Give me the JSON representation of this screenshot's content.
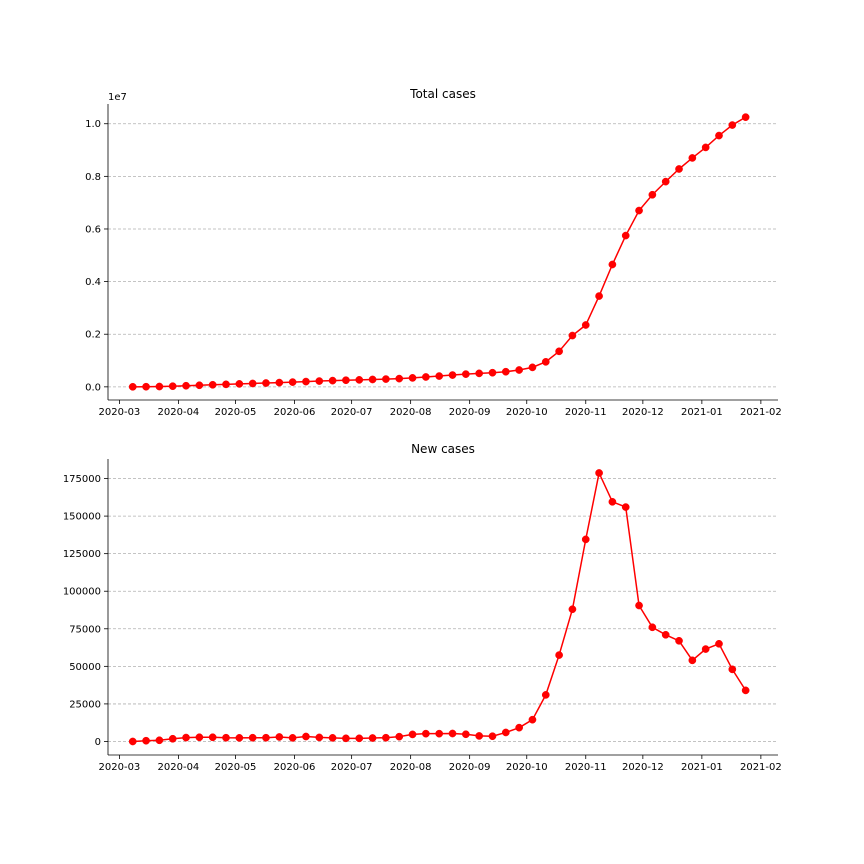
{
  "chart_data": [
    {
      "type": "line",
      "title": "Total cases",
      "xlabel": "",
      "ylabel": "",
      "y_scale_label": "1e7",
      "x_ticks": [
        "2020-03",
        "2020-04",
        "2020-05",
        "2020-06",
        "2020-07",
        "2020-08",
        "2020-09",
        "2020-10",
        "2020-11",
        "2020-12",
        "2021-01",
        "2021-02"
      ],
      "y_ticks": [
        0,
        2000000,
        4000000,
        6000000,
        8000000,
        10000000
      ],
      "y_tick_labels": [
        "0.0",
        "0.2",
        "0.4",
        "0.6",
        "0.8",
        "1.0"
      ],
      "xlim": [
        "2020-02-24",
        "2021-02-10"
      ],
      "ylim": [
        -500000,
        10750000
      ],
      "grid": "y",
      "series": [
        {
          "color": "#ff0000",
          "marker": "circle",
          "x": [
            "2020-03-08",
            "2020-03-15",
            "2020-03-22",
            "2020-03-29",
            "2020-04-05",
            "2020-04-12",
            "2020-04-19",
            "2020-04-26",
            "2020-05-03",
            "2020-05-10",
            "2020-05-17",
            "2020-05-24",
            "2020-05-31",
            "2020-06-07",
            "2020-06-14",
            "2020-06-21",
            "2020-06-28",
            "2020-07-05",
            "2020-07-12",
            "2020-07-19",
            "2020-07-26",
            "2020-08-02",
            "2020-08-09",
            "2020-08-16",
            "2020-08-23",
            "2020-08-30",
            "2020-09-06",
            "2020-09-13",
            "2020-09-20",
            "2020-09-27",
            "2020-10-04",
            "2020-10-11",
            "2020-10-18",
            "2020-10-25",
            "2020-11-01",
            "2020-11-08",
            "2020-11-15",
            "2020-11-22",
            "2020-11-29",
            "2020-12-06",
            "2020-12-13",
            "2020-12-20",
            "2020-12-27",
            "2021-01-03",
            "2021-01-10",
            "2021-01-17",
            "2021-01-24"
          ],
          "y": [
            1000,
            5000,
            12000,
            25000,
            42000,
            60000,
            78000,
            95000,
            112000,
            128000,
            145000,
            162000,
            180000,
            200000,
            220000,
            237000,
            252000,
            265000,
            280000,
            295000,
            313000,
            340000,
            375000,
            410000,
            448000,
            483000,
            512000,
            537000,
            575000,
            640000,
            740000,
            950000,
            1350000,
            1950000,
            2350000,
            3450000,
            4650000,
            5750000,
            6700000,
            7300000,
            7800000,
            8280000,
            8700000,
            9100000,
            9550000,
            9950000,
            10250000
          ]
        }
      ]
    },
    {
      "type": "line",
      "title": "New cases",
      "xlabel": "",
      "ylabel": "",
      "x_ticks": [
        "2020-03",
        "2020-04",
        "2020-05",
        "2020-06",
        "2020-07",
        "2020-08",
        "2020-09",
        "2020-10",
        "2020-11",
        "2020-12",
        "2021-01",
        "2021-02"
      ],
      "y_ticks": [
        0,
        25000,
        50000,
        75000,
        100000,
        125000,
        150000,
        175000
      ],
      "y_tick_labels": [
        "0",
        "25000",
        "50000",
        "75000",
        "100000",
        "125000",
        "150000",
        "175000"
      ],
      "xlim": [
        "2020-02-24",
        "2021-02-10"
      ],
      "ylim": [
        -9000,
        188000
      ],
      "grid": "y",
      "series": [
        {
          "color": "#ff0000",
          "marker": "circle",
          "x": [
            "2020-03-08",
            "2020-03-15",
            "2020-03-22",
            "2020-03-29",
            "2020-04-05",
            "2020-04-12",
            "2020-04-19",
            "2020-04-26",
            "2020-05-03",
            "2020-05-10",
            "2020-05-17",
            "2020-05-24",
            "2020-05-31",
            "2020-06-07",
            "2020-06-14",
            "2020-06-21",
            "2020-06-28",
            "2020-07-05",
            "2020-07-12",
            "2020-07-19",
            "2020-07-26",
            "2020-08-02",
            "2020-08-09",
            "2020-08-16",
            "2020-08-23",
            "2020-08-30",
            "2020-09-06",
            "2020-09-13",
            "2020-09-20",
            "2020-09-27",
            "2020-10-04",
            "2020-10-11",
            "2020-10-18",
            "2020-10-25",
            "2020-11-01",
            "2020-11-08",
            "2020-11-15",
            "2020-11-22",
            "2020-11-29",
            "2020-12-06",
            "2020-12-13",
            "2020-12-20",
            "2020-12-27",
            "2021-01-03",
            "2021-01-10",
            "2021-01-17",
            "2021-01-24"
          ],
          "y": [
            0,
            500,
            800,
            1800,
            2600,
            2800,
            2800,
            2500,
            2400,
            2500,
            2500,
            3000,
            2400,
            3300,
            2700,
            2400,
            2100,
            2100,
            2300,
            2500,
            3200,
            4700,
            5200,
            5200,
            5300,
            4800,
            3700,
            3500,
            6000,
            9200,
            14500,
            31000,
            57500,
            88000,
            134500,
            178700,
            159500,
            156000,
            90500,
            76000,
            71000,
            67000,
            54000,
            61500,
            65000,
            48000,
            34000
          ]
        }
      ]
    }
  ]
}
